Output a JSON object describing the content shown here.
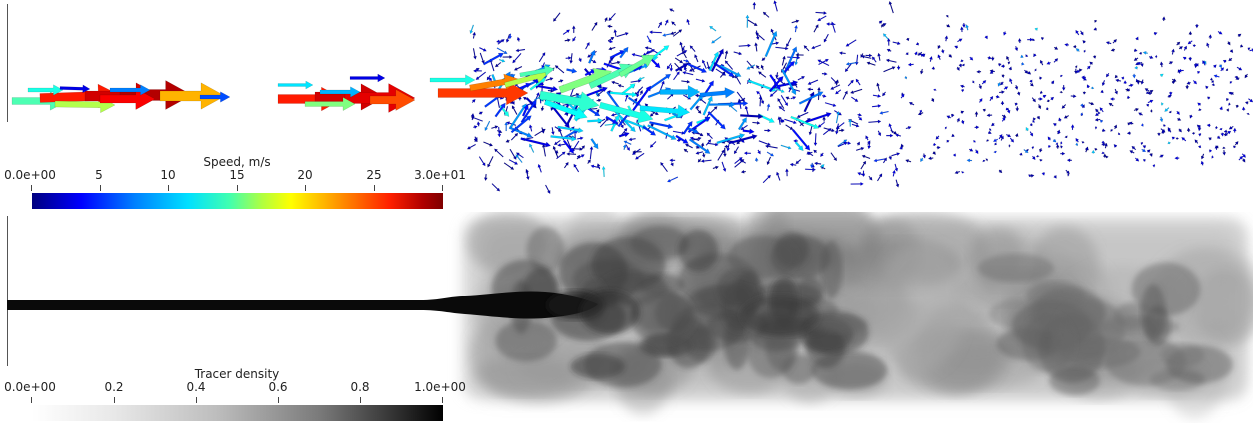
{
  "top_panel": {
    "legend": {
      "title": "Speed, m/s",
      "ticks": [
        "0.0e+00",
        "5",
        "10",
        "15",
        "20",
        "25",
        "3.0e+01"
      ],
      "colormap": "jet",
      "colors": [
        "#00007f",
        "#0000ff",
        "#00e0ff",
        "#ffff00",
        "#ff2000",
        "#7f0000"
      ]
    },
    "field": "velocity-glyphs"
  },
  "bottom_panel": {
    "legend": {
      "title": "Tracer density",
      "ticks": [
        "0.0e+00",
        "0.2",
        "0.4",
        "0.6",
        "0.8",
        "1.0e+00"
      ],
      "colormap": "grayscale",
      "colors": [
        "#ffffff",
        "#000000"
      ]
    },
    "field": "tracer-plume"
  }
}
